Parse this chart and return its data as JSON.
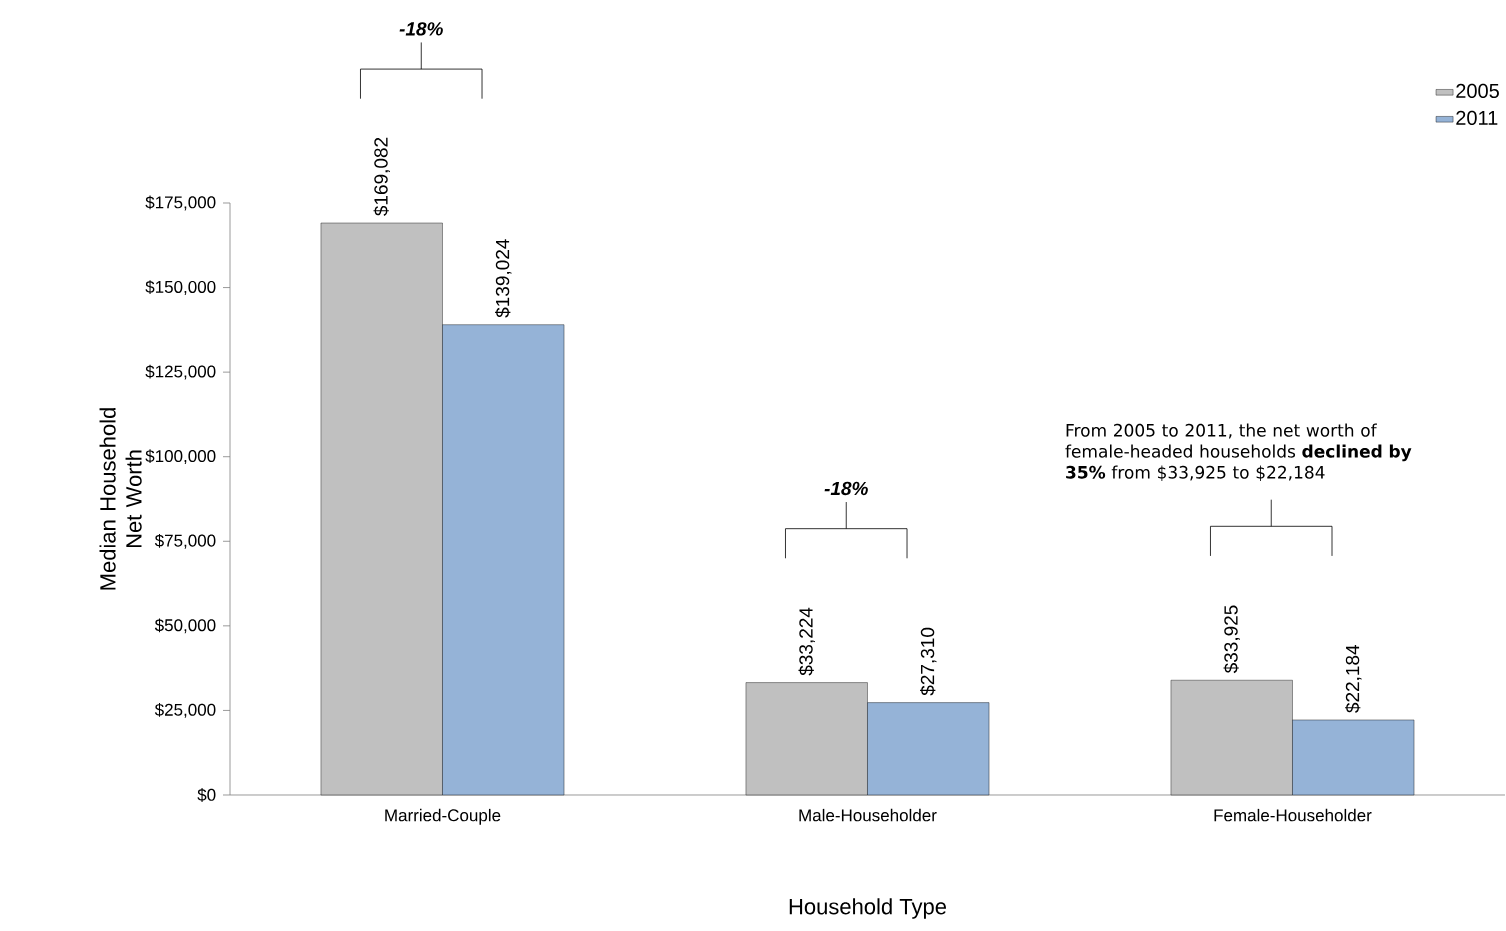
{
  "chart_data": {
    "type": "bar",
    "categories": [
      "Married-Couple",
      "Male-Householder",
      "Female-Householder"
    ],
    "series": [
      {
        "name": "2005",
        "color": "#c0c0c0",
        "values": [
          169082,
          33224,
          33925
        ],
        "value_labels": [
          "$169,082",
          "$33,224",
          "$33,925"
        ]
      },
      {
        "name": "2011",
        "color": "#95b3d7",
        "values": [
          139024,
          27310,
          22184
        ],
        "value_labels": [
          "$139,024",
          "$27,310",
          "$22,184"
        ]
      }
    ],
    "xlabel": "Household Type",
    "ylabel": "Median Household Net Worth",
    "ylim": [
      0,
      175000
    ],
    "yticks": [
      {
        "value": 0,
        "label": "$0"
      },
      {
        "value": 25000,
        "label": "$25,000"
      },
      {
        "value": 50000,
        "label": "$50,000"
      },
      {
        "value": 75000,
        "label": "$75,000"
      },
      {
        "value": 100000,
        "label": "$100,000"
      },
      {
        "value": 125000,
        "label": "$125,000"
      },
      {
        "value": 150000,
        "label": "$150,000"
      },
      {
        "value": 175000,
        "label": "$175,000"
      }
    ],
    "legend": "top right",
    "annotations": [
      "-18%",
      "-18%",
      "From 2005 to 2011, the net worth of female-headed households **declined by 35%** from $33,925 to $22,184"
    ]
  }
}
